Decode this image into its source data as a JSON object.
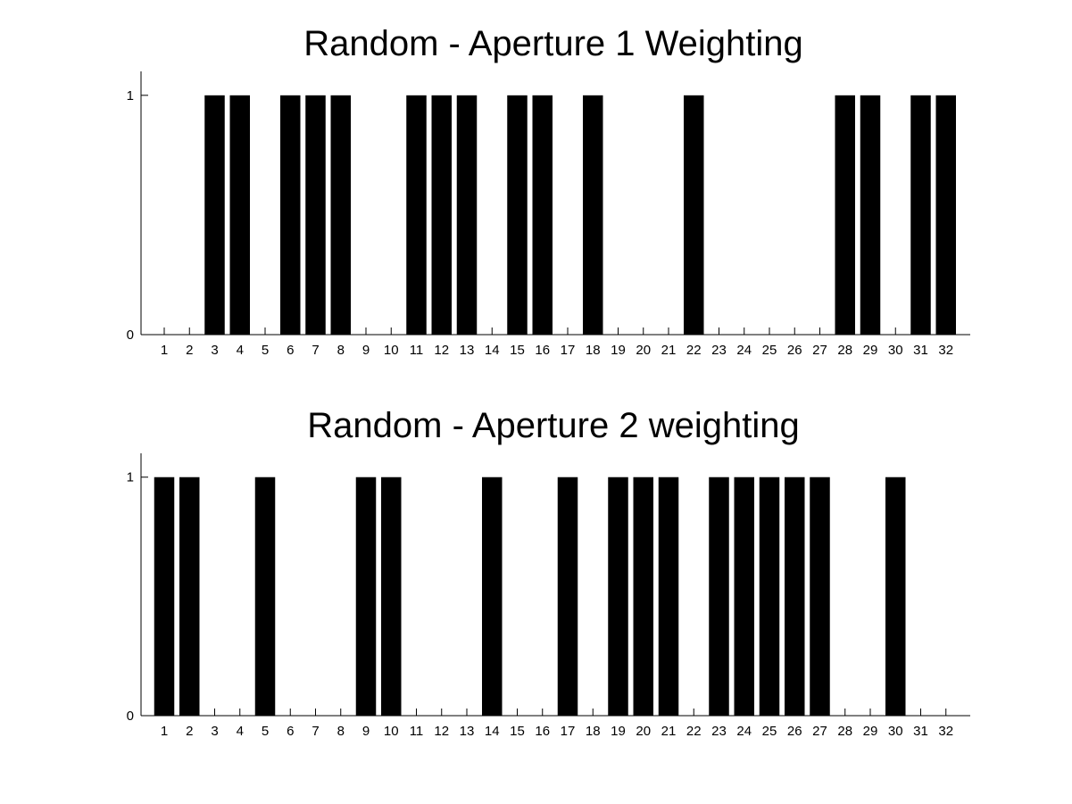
{
  "chart_data": [
    {
      "type": "bar",
      "title": "Random - Aperture 1 Weighting",
      "xlabel": "",
      "ylabel": "",
      "categories": [
        "1",
        "2",
        "3",
        "4",
        "5",
        "6",
        "7",
        "8",
        "9",
        "10",
        "11",
        "12",
        "13",
        "14",
        "15",
        "16",
        "17",
        "18",
        "19",
        "20",
        "21",
        "22",
        "23",
        "24",
        "25",
        "26",
        "27",
        "28",
        "29",
        "30",
        "31",
        "32"
      ],
      "values": [
        0,
        0,
        1,
        1,
        0,
        1,
        1,
        1,
        0,
        0,
        1,
        1,
        1,
        0,
        1,
        1,
        0,
        1,
        0,
        0,
        0,
        1,
        0,
        0,
        0,
        0,
        0,
        1,
        1,
        0,
        1,
        1
      ],
      "ylim": [
        0,
        1.1
      ],
      "yticks": [
        "0",
        "1"
      ],
      "bar_color": "#000000",
      "grid": false,
      "legend": "none"
    },
    {
      "type": "bar",
      "title": "Random - Aperture 2 weighting",
      "xlabel": "",
      "ylabel": "",
      "categories": [
        "1",
        "2",
        "3",
        "4",
        "5",
        "6",
        "7",
        "8",
        "9",
        "10",
        "11",
        "12",
        "13",
        "14",
        "15",
        "16",
        "17",
        "18",
        "19",
        "20",
        "21",
        "22",
        "23",
        "24",
        "25",
        "26",
        "27",
        "28",
        "29",
        "30",
        "31",
        "32"
      ],
      "values": [
        1,
        1,
        0,
        0,
        1,
        0,
        0,
        0,
        1,
        1,
        0,
        0,
        0,
        1,
        0,
        0,
        1,
        0,
        1,
        1,
        1,
        0,
        1,
        1,
        1,
        1,
        1,
        0,
        0,
        1,
        0,
        0
      ],
      "ylim": [
        0,
        1.1
      ],
      "yticks": [
        "0",
        "1"
      ],
      "bar_color": "#000000",
      "grid": false,
      "legend": "none"
    }
  ]
}
